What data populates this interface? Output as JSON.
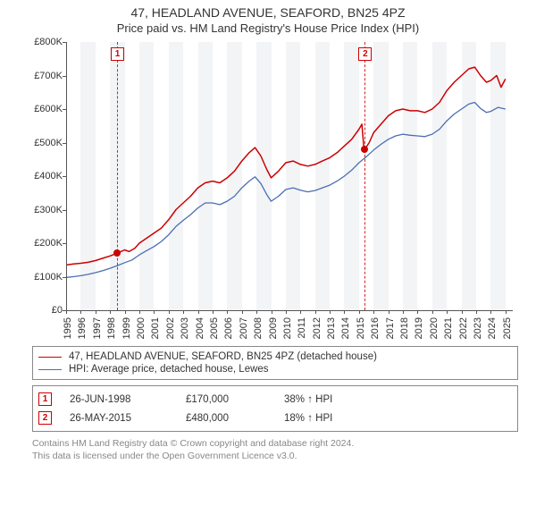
{
  "title": "47, HEADLAND AVENUE, SEAFORD, BN25 4PZ",
  "subtitle": "Price paid vs. HM Land Registry's House Price Index (HPI)",
  "chart": {
    "type": "line",
    "background_color": "#ffffff",
    "band_color": "#f3f4f6",
    "axis_color": "#555555",
    "title_fontsize": 14,
    "subtitle_fontsize": 13,
    "tick_fontsize": 11,
    "x_min": 1995,
    "x_max": 2025.5,
    "x_ticks": [
      1995,
      1996,
      1997,
      1998,
      1999,
      2000,
      2001,
      2002,
      2003,
      2004,
      2005,
      2006,
      2007,
      2008,
      2009,
      2010,
      2011,
      2012,
      2013,
      2014,
      2015,
      2016,
      2017,
      2018,
      2019,
      2020,
      2021,
      2022,
      2023,
      2024,
      2025
    ],
    "y_min": 0,
    "y_max": 800000,
    "y_tick_step": 100000,
    "y_tick_labels": [
      "£0",
      "£100K",
      "£200K",
      "£300K",
      "£400K",
      "£500K",
      "£600K",
      "£700K",
      "£800K"
    ],
    "series": [
      {
        "name": "price_paid",
        "label": "47, HEADLAND AVENUE, SEAFORD, BN25 4PZ (detached house)",
        "color": "#cc0000",
        "line_width": 1.5,
        "points": [
          [
            1995.0,
            135000
          ],
          [
            1995.5,
            138000
          ],
          [
            1996.0,
            140000
          ],
          [
            1996.5,
            143000
          ],
          [
            1997.0,
            148000
          ],
          [
            1997.5,
            155000
          ],
          [
            1998.0,
            162000
          ],
          [
            1998.48,
            170000
          ],
          [
            1999.0,
            180000
          ],
          [
            1999.3,
            175000
          ],
          [
            1999.7,
            185000
          ],
          [
            2000.0,
            200000
          ],
          [
            2000.5,
            215000
          ],
          [
            2001.0,
            230000
          ],
          [
            2001.5,
            245000
          ],
          [
            2002.0,
            270000
          ],
          [
            2002.5,
            300000
          ],
          [
            2003.0,
            320000
          ],
          [
            2003.5,
            340000
          ],
          [
            2004.0,
            365000
          ],
          [
            2004.5,
            380000
          ],
          [
            2005.0,
            385000
          ],
          [
            2005.5,
            380000
          ],
          [
            2006.0,
            395000
          ],
          [
            2006.5,
            415000
          ],
          [
            2007.0,
            445000
          ],
          [
            2007.5,
            470000
          ],
          [
            2007.9,
            485000
          ],
          [
            2008.3,
            460000
          ],
          [
            2008.7,
            420000
          ],
          [
            2009.0,
            395000
          ],
          [
            2009.5,
            415000
          ],
          [
            2010.0,
            440000
          ],
          [
            2010.5,
            445000
          ],
          [
            2011.0,
            435000
          ],
          [
            2011.5,
            430000
          ],
          [
            2012.0,
            435000
          ],
          [
            2012.5,
            445000
          ],
          [
            2013.0,
            455000
          ],
          [
            2013.5,
            470000
          ],
          [
            2014.0,
            490000
          ],
          [
            2014.5,
            510000
          ],
          [
            2015.0,
            540000
          ],
          [
            2015.2,
            555000
          ],
          [
            2015.35,
            475000
          ],
          [
            2015.4,
            480000
          ],
          [
            2015.7,
            500000
          ],
          [
            2016.0,
            530000
          ],
          [
            2016.5,
            555000
          ],
          [
            2017.0,
            580000
          ],
          [
            2017.5,
            595000
          ],
          [
            2018.0,
            600000
          ],
          [
            2018.5,
            595000
          ],
          [
            2019.0,
            595000
          ],
          [
            2019.5,
            590000
          ],
          [
            2020.0,
            600000
          ],
          [
            2020.5,
            620000
          ],
          [
            2021.0,
            655000
          ],
          [
            2021.5,
            680000
          ],
          [
            2022.0,
            700000
          ],
          [
            2022.5,
            720000
          ],
          [
            2022.9,
            725000
          ],
          [
            2023.3,
            700000
          ],
          [
            2023.7,
            680000
          ],
          [
            2024.0,
            685000
          ],
          [
            2024.4,
            700000
          ],
          [
            2024.7,
            665000
          ],
          [
            2025.0,
            690000
          ]
        ]
      },
      {
        "name": "hpi",
        "label": "HPI: Average price, detached house, Lewes",
        "color": "#4a6fb3",
        "line_width": 1.3,
        "points": [
          [
            1995.0,
            98000
          ],
          [
            1995.5,
            100000
          ],
          [
            1996.0,
            103000
          ],
          [
            1996.5,
            107000
          ],
          [
            1997.0,
            112000
          ],
          [
            1997.5,
            118000
          ],
          [
            1998.0,
            125000
          ],
          [
            1998.5,
            133000
          ],
          [
            1999.0,
            142000
          ],
          [
            1999.5,
            150000
          ],
          [
            2000.0,
            165000
          ],
          [
            2000.5,
            178000
          ],
          [
            2001.0,
            190000
          ],
          [
            2001.5,
            205000
          ],
          [
            2002.0,
            225000
          ],
          [
            2002.5,
            250000
          ],
          [
            2003.0,
            268000
          ],
          [
            2003.5,
            285000
          ],
          [
            2004.0,
            305000
          ],
          [
            2004.5,
            320000
          ],
          [
            2005.0,
            320000
          ],
          [
            2005.5,
            315000
          ],
          [
            2006.0,
            325000
          ],
          [
            2006.5,
            340000
          ],
          [
            2007.0,
            365000
          ],
          [
            2007.5,
            385000
          ],
          [
            2007.9,
            398000
          ],
          [
            2008.3,
            378000
          ],
          [
            2008.7,
            345000
          ],
          [
            2009.0,
            325000
          ],
          [
            2009.5,
            340000
          ],
          [
            2010.0,
            360000
          ],
          [
            2010.5,
            365000
          ],
          [
            2011.0,
            358000
          ],
          [
            2011.5,
            353000
          ],
          [
            2012.0,
            357000
          ],
          [
            2012.5,
            365000
          ],
          [
            2013.0,
            373000
          ],
          [
            2013.5,
            385000
          ],
          [
            2014.0,
            400000
          ],
          [
            2014.5,
            418000
          ],
          [
            2015.0,
            440000
          ],
          [
            2015.5,
            458000
          ],
          [
            2016.0,
            478000
          ],
          [
            2016.5,
            495000
          ],
          [
            2017.0,
            510000
          ],
          [
            2017.5,
            520000
          ],
          [
            2018.0,
            525000
          ],
          [
            2018.5,
            522000
          ],
          [
            2019.0,
            520000
          ],
          [
            2019.5,
            518000
          ],
          [
            2020.0,
            525000
          ],
          [
            2020.5,
            540000
          ],
          [
            2021.0,
            565000
          ],
          [
            2021.5,
            585000
          ],
          [
            2022.0,
            600000
          ],
          [
            2022.5,
            615000
          ],
          [
            2022.9,
            620000
          ],
          [
            2023.3,
            602000
          ],
          [
            2023.7,
            590000
          ],
          [
            2024.0,
            593000
          ],
          [
            2024.5,
            605000
          ],
          [
            2025.0,
            600000
          ]
        ]
      }
    ],
    "sale_markers": [
      {
        "n": "1",
        "x": 1998.48,
        "y": 170000
      },
      {
        "n": "2",
        "x": 2015.4,
        "y": 480000
      }
    ]
  },
  "legend_title_color": "#333333",
  "sales": [
    {
      "n": "1",
      "date": "26-JUN-1998",
      "price": "£170,000",
      "pct": "38% ↑ HPI"
    },
    {
      "n": "2",
      "date": "26-MAY-2015",
      "price": "£480,000",
      "pct": "18% ↑ HPI"
    }
  ],
  "footer": {
    "line1": "Contains HM Land Registry data © Crown copyright and database right 2024.",
    "line2": "This data is licensed under the Open Government Licence v3.0.",
    "color": "#888888"
  }
}
